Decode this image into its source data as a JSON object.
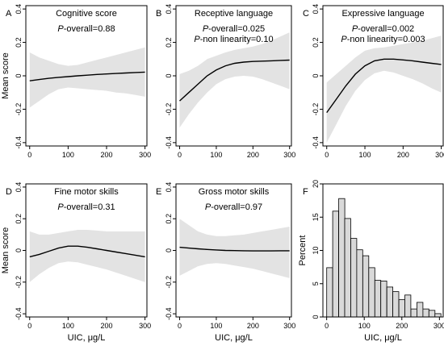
{
  "figure": {
    "x_axis_title": "UIC, μg/L",
    "y_axis_title_score": "Mean score",
    "y_axis_title_percent": "Percent"
  },
  "chart_data": [
    {
      "letter": "A",
      "type": "line",
      "title": "Cognitive score",
      "stats": [
        {
          "p": "P",
          "text": "-overall=0.88"
        }
      ],
      "xlim": [
        -10,
        305
      ],
      "ylim": [
        -0.42,
        0.42
      ],
      "xticks": [
        0,
        100,
        200,
        300
      ],
      "yticks": [
        -0.4,
        -0.2,
        0.0,
        0.2,
        0.4
      ],
      "ylabel": "Mean score",
      "xlabel": "",
      "x": [
        0,
        25,
        50,
        75,
        100,
        125,
        150,
        175,
        200,
        225,
        250,
        275,
        300
      ],
      "y": [
        -0.03,
        -0.022,
        -0.015,
        -0.009,
        -0.005,
        0.0,
        0.004,
        0.008,
        0.011,
        0.014,
        0.017,
        0.02,
        0.022
      ],
      "lower": [
        -0.19,
        -0.15,
        -0.11,
        -0.08,
        -0.07,
        -0.075,
        -0.08,
        -0.085,
        -0.09,
        -0.1,
        -0.105,
        -0.115,
        -0.125
      ],
      "upper": [
        0.14,
        0.11,
        0.09,
        0.07,
        0.06,
        0.065,
        0.08,
        0.095,
        0.11,
        0.125,
        0.14,
        0.155,
        0.17
      ]
    },
    {
      "letter": "B",
      "type": "line",
      "title": "Receptive language",
      "stats": [
        {
          "p": "P",
          "text": "-overall=0.025"
        },
        {
          "p": "P",
          "text": "-non linearity=0.10"
        }
      ],
      "xlim": [
        -10,
        305
      ],
      "ylim": [
        -0.42,
        0.42
      ],
      "xticks": [
        0,
        100,
        200,
        300
      ],
      "yticks": [
        -0.4,
        -0.2,
        0.0,
        0.2,
        0.4
      ],
      "ylabel": "",
      "xlabel": "",
      "x": [
        0,
        25,
        50,
        75,
        100,
        125,
        150,
        175,
        200,
        225,
        250,
        275,
        300
      ],
      "y": [
        -0.15,
        -0.1,
        -0.05,
        0.0,
        0.035,
        0.06,
        0.075,
        0.082,
        0.086,
        0.088,
        0.09,
        0.092,
        0.094
      ],
      "lower": [
        -0.31,
        -0.23,
        -0.16,
        -0.1,
        -0.05,
        -0.02,
        -0.005,
        0.0,
        -0.005,
        -0.02,
        -0.04,
        -0.06,
        -0.08
      ],
      "upper": [
        0.01,
        0.03,
        0.06,
        0.1,
        0.12,
        0.14,
        0.155,
        0.165,
        0.175,
        0.19,
        0.21,
        0.235,
        0.26
      ]
    },
    {
      "letter": "C",
      "type": "line",
      "title": "Expressive language",
      "stats": [
        {
          "p": "P",
          "text": "-overall=0.002"
        },
        {
          "p": "P",
          "text": "-non linearity=0.003"
        }
      ],
      "xlim": [
        -10,
        305
      ],
      "ylim": [
        -0.42,
        0.42
      ],
      "xticks": [
        0,
        100,
        200,
        300
      ],
      "yticks": [
        -0.4,
        -0.2,
        0.0,
        0.2,
        0.4
      ],
      "ylabel": "",
      "xlabel": "",
      "x": [
        0,
        25,
        50,
        75,
        100,
        125,
        150,
        175,
        200,
        225,
        250,
        275,
        300
      ],
      "y": [
        -0.22,
        -0.14,
        -0.06,
        0.01,
        0.06,
        0.09,
        0.1,
        0.1,
        0.095,
        0.09,
        0.082,
        0.075,
        0.068
      ],
      "lower": [
        -0.4,
        -0.29,
        -0.18,
        -0.09,
        -0.025,
        0.015,
        0.03,
        0.02,
        0.0,
        -0.02,
        -0.045,
        -0.075,
        -0.1
      ],
      "upper": [
        -0.04,
        0.01,
        0.06,
        0.11,
        0.15,
        0.165,
        0.17,
        0.18,
        0.19,
        0.2,
        0.21,
        0.225,
        0.24
      ]
    },
    {
      "letter": "D",
      "type": "line",
      "title": "Fine motor skills",
      "stats": [
        {
          "p": "P",
          "text": "-overall=0.31"
        }
      ],
      "xlim": [
        -10,
        305
      ],
      "ylim": [
        -0.42,
        0.42
      ],
      "xticks": [
        0,
        100,
        200,
        300
      ],
      "yticks": [
        -0.4,
        -0.2,
        0.0,
        0.2,
        0.4
      ],
      "ylabel": "Mean score",
      "xlabel": "UIC, μg/L",
      "x": [
        0,
        25,
        50,
        75,
        100,
        125,
        150,
        175,
        200,
        225,
        250,
        275,
        300
      ],
      "y": [
        -0.04,
        -0.025,
        -0.005,
        0.015,
        0.027,
        0.027,
        0.02,
        0.01,
        0.0,
        -0.01,
        -0.02,
        -0.03,
        -0.04
      ],
      "lower": [
        -0.2,
        -0.15,
        -0.11,
        -0.08,
        -0.07,
        -0.075,
        -0.09,
        -0.105,
        -0.12,
        -0.14,
        -0.16,
        -0.18,
        -0.2
      ],
      "upper": [
        0.12,
        0.1,
        0.1,
        0.11,
        0.12,
        0.13,
        0.13,
        0.125,
        0.12,
        0.12,
        0.12,
        0.12,
        0.12
      ]
    },
    {
      "letter": "E",
      "type": "line",
      "title": "Gross motor skills",
      "stats": [
        {
          "p": "P",
          "text": "-overall=0.97"
        }
      ],
      "xlim": [
        -10,
        305
      ],
      "ylim": [
        -0.42,
        0.42
      ],
      "xticks": [
        0,
        100,
        200,
        300
      ],
      "yticks": [
        -0.4,
        -0.2,
        0.0,
        0.2,
        0.4
      ],
      "ylabel": "",
      "xlabel": "UIC, μg/L",
      "x": [
        0,
        25,
        50,
        75,
        100,
        125,
        150,
        175,
        200,
        225,
        250,
        275,
        300
      ],
      "y": [
        0.02,
        0.015,
        0.01,
        0.006,
        0.003,
        0.0,
        -0.001,
        -0.002,
        -0.003,
        -0.003,
        -0.003,
        -0.002,
        -0.002
      ],
      "lower": [
        -0.16,
        -0.13,
        -0.1,
        -0.085,
        -0.08,
        -0.085,
        -0.095,
        -0.105,
        -0.115,
        -0.13,
        -0.145,
        -0.16,
        -0.175
      ],
      "upper": [
        0.2,
        0.16,
        0.12,
        0.1,
        0.09,
        0.09,
        0.095,
        0.1,
        0.11,
        0.12,
        0.13,
        0.14,
        0.15
      ]
    },
    {
      "letter": "F",
      "type": "bar",
      "title": "",
      "stats": [],
      "xlim": [
        -10,
        310
      ],
      "ylim": [
        0,
        20
      ],
      "xticks": [
        0,
        100,
        200,
        300
      ],
      "yticks": [
        0,
        5,
        10,
        15,
        20
      ],
      "ylabel": "Percent",
      "xlabel": "UIC, μg/L",
      "bin_width": 16,
      "bin_starts": [
        0,
        16,
        32,
        48,
        64,
        80,
        96,
        112,
        128,
        144,
        160,
        176,
        192,
        208,
        224,
        240,
        256,
        272,
        288
      ],
      "values": [
        7.4,
        15.9,
        17.8,
        14.8,
        11.8,
        10.1,
        9.2,
        7.4,
        5.5,
        5.4,
        4.5,
        3.8,
        2.6,
        3.3,
        1.2,
        2.2,
        1.2,
        1.0,
        0.5
      ]
    }
  ]
}
